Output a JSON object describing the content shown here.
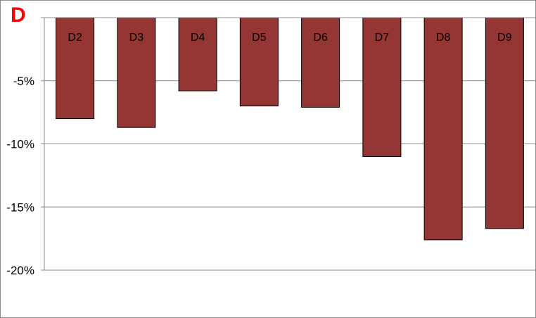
{
  "panel_label": "D",
  "chart_data": {
    "type": "bar",
    "categories": [
      "D2",
      "D3",
      "D4",
      "D5",
      "D6",
      "D7",
      "D8",
      "D9"
    ],
    "values": [
      -8.0,
      -8.7,
      -5.8,
      -7.0,
      -7.1,
      -11.0,
      -17.6,
      -16.7
    ],
    "ylim": [
      -20,
      0
    ],
    "yticks": [
      -5,
      -10,
      -15,
      -20
    ],
    "ytick_labels": [
      "-5%",
      "-10%",
      "-15%",
      "-20%"
    ],
    "bar_color": "#943634",
    "grid": true
  }
}
